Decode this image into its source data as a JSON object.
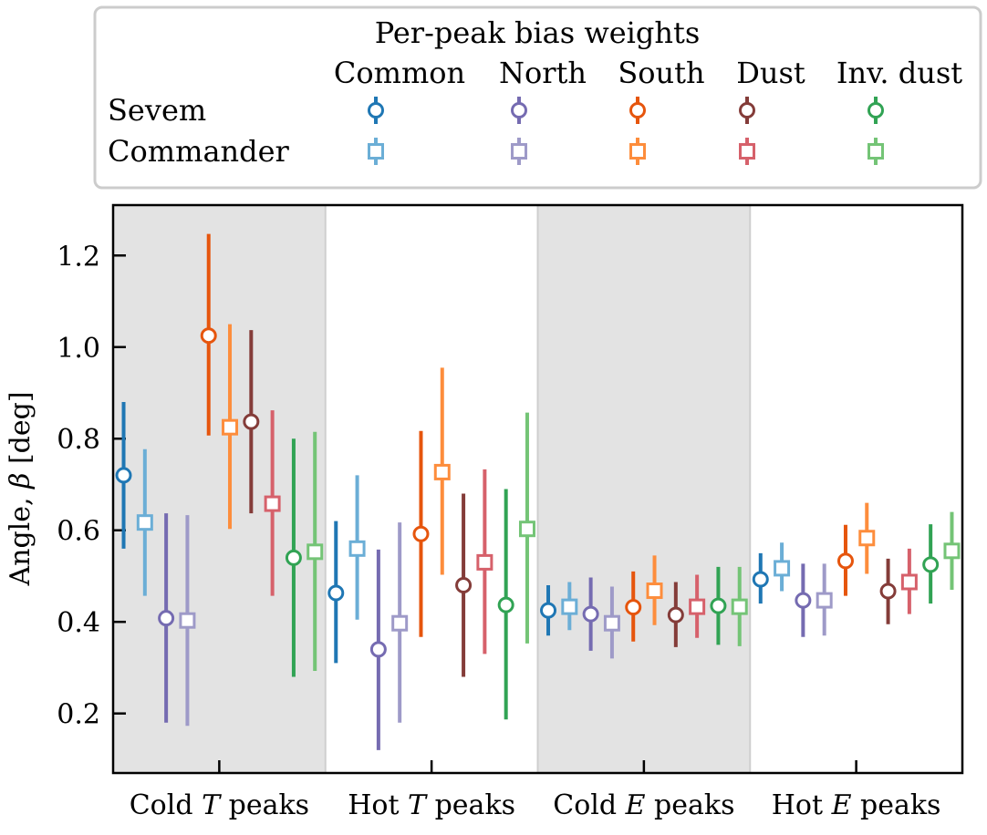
{
  "chart_data": {
    "type": "errorbar",
    "title": "",
    "xlabel": "",
    "ylabel": "Angle, β [deg]",
    "ylabel_plain": "Angle, ",
    "ylabel_symbol": "β",
    "ylabel_unit": " [deg]",
    "ylim": [
      0.07,
      1.31
    ],
    "yticks": [
      0.2,
      0.4,
      0.6,
      0.8,
      1.0,
      1.2
    ],
    "ytick_labels": [
      "0.2",
      "0.4",
      "0.6",
      "0.8",
      "1.0",
      "1.2"
    ],
    "categories": [
      {
        "pre": "Cold ",
        "sym": "T",
        "post": " peaks",
        "shaded": true
      },
      {
        "pre": "Hot ",
        "sym": "T",
        "post": " peaks",
        "shaded": false
      },
      {
        "pre": "Cold ",
        "sym": "E",
        "post": " peaks",
        "shaded": true
      },
      {
        "pre": "Hot ",
        "sym": "E",
        "post": " peaks",
        "shaded": false
      }
    ],
    "legend": {
      "title": "Per-peak bias weights",
      "columns": [
        "Common",
        "North",
        "South",
        "Dust",
        "Inv. dust"
      ],
      "rows": [
        "Sevem",
        "Commander"
      ]
    },
    "series": [
      {
        "name": "Sevem Common",
        "method": "Sevem",
        "weight": "Common",
        "marker": "circle",
        "color": "#1f77b4",
        "values": [
          0.72,
          0.463,
          0.425,
          0.493
        ],
        "err_low": [
          0.56,
          0.31,
          0.37,
          0.44
        ],
        "err_high": [
          0.88,
          0.62,
          0.48,
          0.55
        ]
      },
      {
        "name": "Commander Common",
        "method": "Commander",
        "weight": "Common",
        "marker": "square",
        "color": "#6baed6",
        "values": [
          0.617,
          0.56,
          0.433,
          0.517
        ],
        "err_low": [
          0.457,
          0.405,
          0.382,
          0.467
        ],
        "err_high": [
          0.777,
          0.72,
          0.487,
          0.573
        ]
      },
      {
        "name": "Sevem North",
        "method": "Sevem",
        "weight": "North",
        "marker": "circle",
        "color": "#756bb1",
        "values": [
          0.408,
          0.34,
          0.417,
          0.447
        ],
        "err_low": [
          0.18,
          0.12,
          0.337,
          0.367
        ],
        "err_high": [
          0.637,
          0.558,
          0.497,
          0.527
        ]
      },
      {
        "name": "Commander North",
        "method": "Commander",
        "weight": "North",
        "marker": "square",
        "color": "#9e9ac8",
        "values": [
          0.403,
          0.397,
          0.397,
          0.447
        ],
        "err_low": [
          0.173,
          0.18,
          0.32,
          0.37
        ],
        "err_high": [
          0.633,
          0.617,
          0.477,
          0.527
        ]
      },
      {
        "name": "Sevem South",
        "method": "Sevem",
        "weight": "South",
        "marker": "circle",
        "color": "#e6550d",
        "values": [
          1.025,
          0.592,
          0.432,
          0.533
        ],
        "err_low": [
          0.807,
          0.367,
          0.357,
          0.457
        ],
        "err_high": [
          1.247,
          0.817,
          0.51,
          0.612
        ]
      },
      {
        "name": "Commander South",
        "method": "Commander",
        "weight": "South",
        "marker": "square",
        "color": "#fd8d3c",
        "values": [
          0.825,
          0.727,
          0.468,
          0.583
        ],
        "err_low": [
          0.603,
          0.503,
          0.393,
          0.505
        ],
        "err_high": [
          1.05,
          0.955,
          0.545,
          0.66
        ]
      },
      {
        "name": "Sevem Dust",
        "method": "Sevem",
        "weight": "Dust",
        "marker": "circle",
        "color": "#843c39",
        "values": [
          0.837,
          0.48,
          0.415,
          0.467
        ],
        "err_low": [
          0.637,
          0.28,
          0.345,
          0.395
        ],
        "err_high": [
          1.037,
          0.68,
          0.487,
          0.538
        ]
      },
      {
        "name": "Commander Dust",
        "method": "Commander",
        "weight": "Dust",
        "marker": "square",
        "color": "#d6616b",
        "values": [
          0.658,
          0.53,
          0.433,
          0.487
        ],
        "err_low": [
          0.457,
          0.33,
          0.365,
          0.417
        ],
        "err_high": [
          0.862,
          0.733,
          0.503,
          0.56
        ]
      },
      {
        "name": "Sevem Inv. dust",
        "method": "Sevem",
        "weight": "Inv. dust",
        "marker": "circle",
        "color": "#31a354",
        "values": [
          0.54,
          0.437,
          0.435,
          0.525
        ],
        "err_low": [
          0.28,
          0.187,
          0.35,
          0.44
        ],
        "err_high": [
          0.8,
          0.69,
          0.52,
          0.613
        ]
      },
      {
        "name": "Commander Inv. dust",
        "method": "Commander",
        "weight": "Inv. dust",
        "marker": "square",
        "color": "#74c476",
        "values": [
          0.553,
          0.603,
          0.433,
          0.555
        ],
        "err_low": [
          0.293,
          0.353,
          0.347,
          0.47
        ],
        "err_high": [
          0.815,
          0.857,
          0.52,
          0.64
        ]
      }
    ]
  }
}
